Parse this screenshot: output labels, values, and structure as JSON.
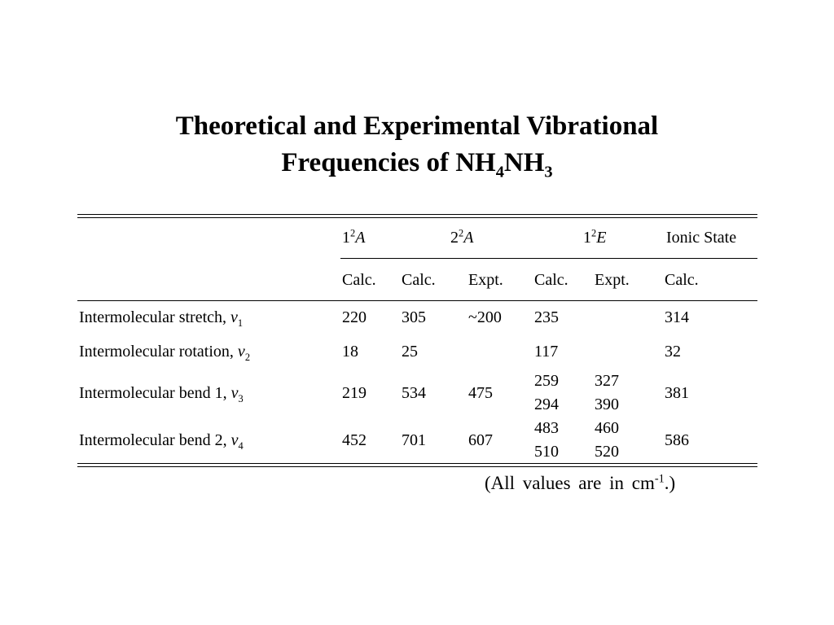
{
  "title": {
    "line1": "Theoretical and Experimental Vibrational",
    "line2": {
      "text": "Frequencies of NH",
      "sub1": "4",
      "text2": "NH",
      "sub2": "3"
    }
  },
  "table": {
    "states": [
      {
        "level": "1",
        "sup": "2",
        "symbol": "A"
      },
      {
        "level": "2",
        "sup": "2",
        "symbol": "A"
      },
      {
        "level": "1",
        "sup": "2",
        "symbol": "E"
      },
      {
        "label": "Ionic State"
      }
    ],
    "columns": [
      "Calc.",
      "Calc.",
      "Expt.",
      "Calc.",
      "Expt.",
      "Calc."
    ],
    "rows": [
      {
        "label": "Intermolecular stretch, ",
        "mode": "ν",
        "sub": "1",
        "cells": [
          220,
          305,
          "~200",
          235,
          null,
          314
        ]
      },
      {
        "label": "Intermolecular rotation, ",
        "mode": "ν",
        "sub": "2",
        "cells": [
          18,
          25,
          null,
          117,
          null,
          32
        ]
      },
      {
        "label": "Intermolecular bend 1, ",
        "mode": "ν",
        "sub": "3",
        "cells": [
          219,
          534,
          475,
          [
            259,
            294
          ],
          [
            327,
            390
          ],
          381
        ]
      },
      {
        "label": "Intermolecular bend 2, ",
        "mode": "ν",
        "sub": "4",
        "cells": [
          452,
          701,
          607,
          [
            483,
            510
          ],
          [
            460,
            520
          ],
          586
        ]
      }
    ]
  },
  "footnote": {
    "text": "(All values are in cm",
    "sup": "-1",
    "end": ".)"
  }
}
